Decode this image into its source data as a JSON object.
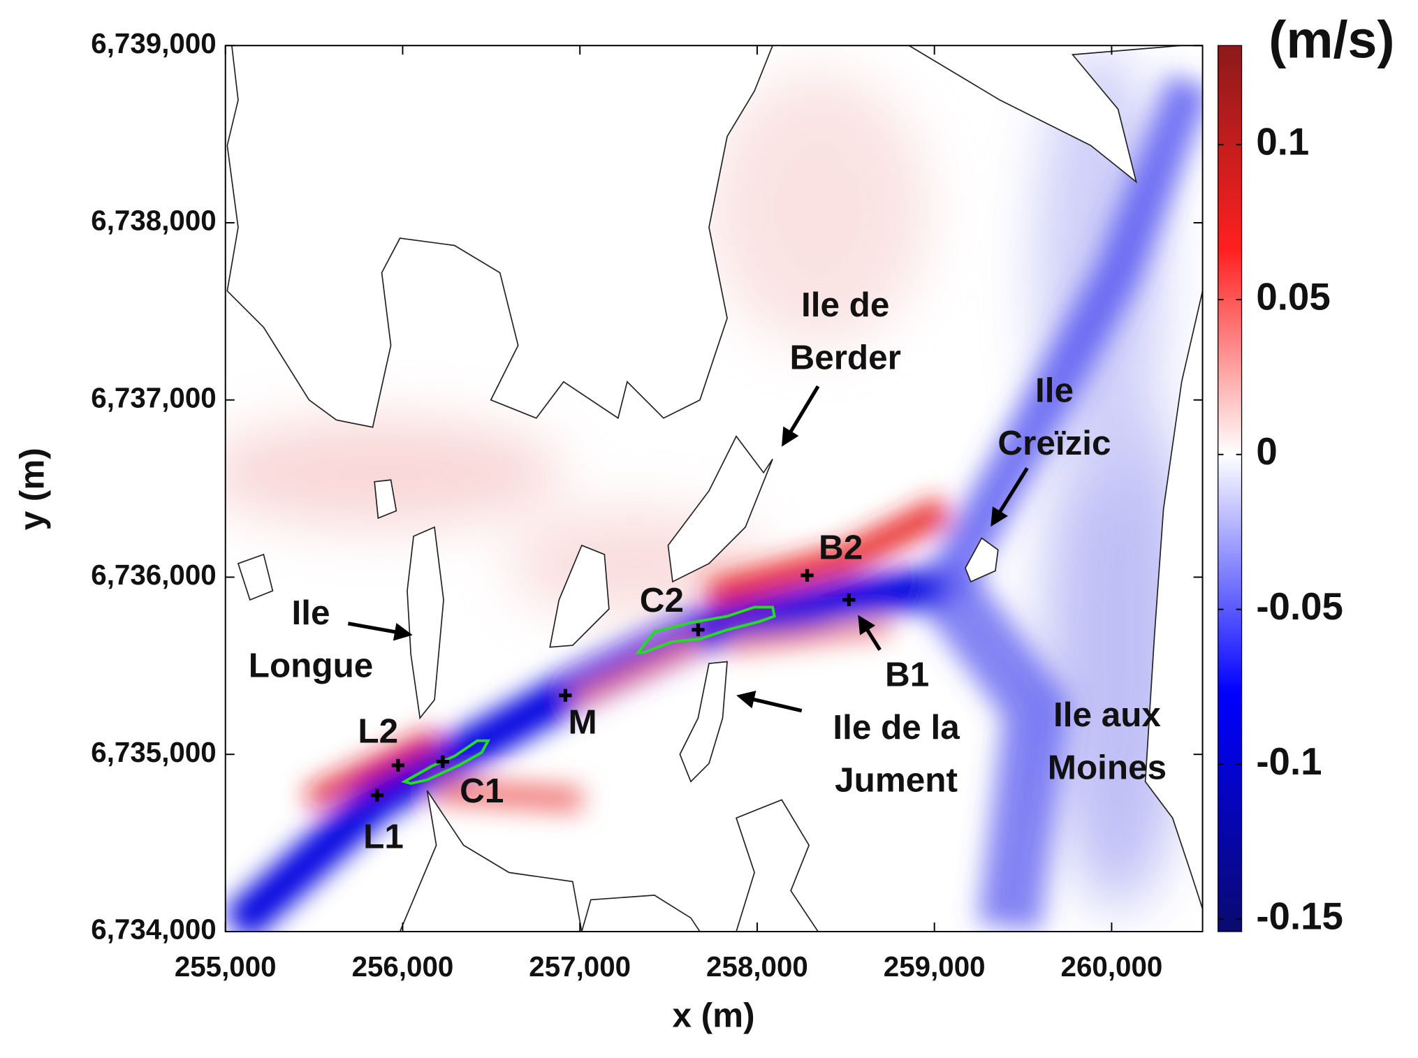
{
  "chart_data": {
    "type": "map",
    "xlabel": "x (m)",
    "ylabel": "y (m)",
    "xlim": [
      255000,
      260513
    ],
    "ylim": [
      6734000,
      6739000
    ],
    "xticks": [
      {
        "value": 255000,
        "label": "255,000"
      },
      {
        "value": 256000,
        "label": "256,000"
      },
      {
        "value": 257000,
        "label": "257,000"
      },
      {
        "value": 258000,
        "label": "258,000"
      },
      {
        "value": 259000,
        "label": "259,000"
      },
      {
        "value": 260000,
        "label": "260,000"
      }
    ],
    "yticks": [
      {
        "value": 6734000,
        "label": "6,734,000"
      },
      {
        "value": 6735000,
        "label": "6,735,000"
      },
      {
        "value": 6736000,
        "label": "6,736,000"
      },
      {
        "value": 6737000,
        "label": "6,737,000"
      },
      {
        "value": 6738000,
        "label": "6,738,000"
      },
      {
        "value": 6739000,
        "label": "6,739,000"
      }
    ],
    "colorbar": {
      "label": "(m/s)",
      "lim": [
        -0.154,
        0.132
      ],
      "ticks": [
        -0.15,
        -0.1,
        -0.05,
        0,
        0.05,
        0.1
      ],
      "colormap": [
        "#0a0a6e",
        "#0000ff",
        "#ffffff",
        "#ff2020",
        "#8b1a1a"
      ]
    },
    "points": [
      {
        "label": "L1",
        "x": 255856,
        "y": 6734769
      },
      {
        "label": "L2",
        "x": 255974,
        "y": 6734938
      },
      {
        "label": "C1",
        "x": 256226,
        "y": 6734959
      },
      {
        "label": "C2",
        "x": 257667,
        "y": 6735703
      },
      {
        "label": "M",
        "x": 256918,
        "y": 6735333
      },
      {
        "label": "B2",
        "x": 258282,
        "y": 6736010
      },
      {
        "label": "B1",
        "x": 258518,
        "y": 6735872
      }
    ],
    "point_color": "#000000",
    "contour_color": "#22dd22",
    "islands": [
      {
        "lines": [
          "Ile de",
          "Berder"
        ]
      },
      {
        "lines": [
          "Ile",
          "Creïzic"
        ]
      },
      {
        "lines": [
          "Ile",
          "Longue"
        ]
      },
      {
        "lines": [
          "Ile de la",
          "Jument"
        ]
      },
      {
        "lines": [
          "Ile aux",
          "Moines"
        ]
      }
    ]
  }
}
